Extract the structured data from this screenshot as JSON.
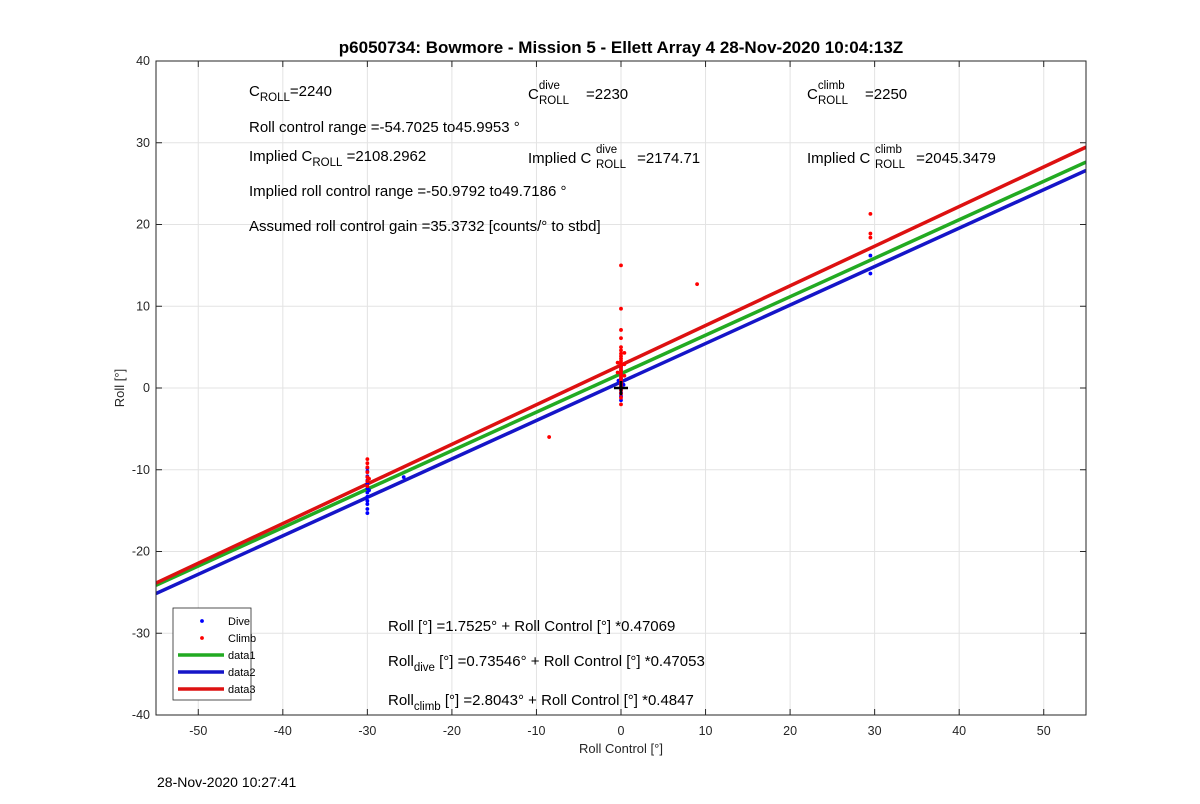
{
  "chart_data": {
    "type": "scatter",
    "title": "p6050734: Bowmore - Mission 5 - Ellett Array 4 28-Nov-2020 10:04:13Z",
    "xlabel": "Roll Control [°]",
    "ylabel": "Roll [°]",
    "xlim": [
      -55,
      55
    ],
    "ylim": [
      -40,
      40
    ],
    "xticks": [
      -50,
      -40,
      -30,
      -20,
      -10,
      0,
      10,
      20,
      30,
      40,
      50
    ],
    "yticks": [
      -40,
      -30,
      -20,
      -10,
      0,
      10,
      20,
      30,
      40
    ],
    "grid": true,
    "legend_position": "bottom-left",
    "legend": [
      "Dive",
      "Climb",
      "data1",
      "data2",
      "data3"
    ],
    "colors": {
      "dive": "#0000ff",
      "climb": "#ff0000",
      "data1": "#22aa22",
      "data2": "#1515c8",
      "data3": "#dd1111"
    },
    "series": [
      {
        "name": "Dive",
        "kind": "points",
        "color": "#0000ff",
        "points": [
          [
            -30,
            -15.3
          ],
          [
            -30,
            -14.8
          ],
          [
            -30,
            -14.2
          ],
          [
            -30,
            -13.8
          ],
          [
            -30,
            -13.3
          ],
          [
            -30,
            -12.8
          ],
          [
            -30,
            -12.3
          ],
          [
            -30,
            -11.7
          ],
          [
            -30,
            -11.3
          ],
          [
            -30,
            -10.8
          ],
          [
            -30,
            -10.2
          ],
          [
            -30,
            -9.8
          ],
          [
            -29.8,
            -12.5
          ],
          [
            -25.7,
            -10.9
          ],
          [
            0,
            -1.5
          ],
          [
            0,
            -1.0
          ],
          [
            0,
            -0.6
          ],
          [
            0,
            -0.2
          ],
          [
            0,
            0.2
          ],
          [
            0,
            0.5
          ],
          [
            0,
            0.8
          ],
          [
            0,
            1.2
          ],
          [
            0,
            1.5
          ],
          [
            0,
            1.8
          ],
          [
            0,
            2.2
          ],
          [
            0,
            2.6
          ],
          [
            0.3,
            0.4
          ],
          [
            -0.3,
            0.9
          ],
          [
            29.5,
            14.0
          ],
          [
            29.5,
            16.2
          ]
        ]
      },
      {
        "name": "Climb",
        "kind": "points",
        "color": "#ff0000",
        "points": [
          [
            -30,
            -8.7
          ],
          [
            -30,
            -9.2
          ],
          [
            -30,
            -9.7
          ],
          [
            -30,
            -10.3
          ],
          [
            -30,
            -10.9
          ],
          [
            -30,
            -11.4
          ],
          [
            -30,
            -12.0
          ],
          [
            -29.8,
            -11.1
          ],
          [
            0,
            15.0
          ],
          [
            0,
            9.7
          ],
          [
            0,
            7.1
          ],
          [
            0,
            6.1
          ],
          [
            0,
            5.0
          ],
          [
            0,
            4.6
          ],
          [
            0,
            4.2
          ],
          [
            0,
            3.9
          ],
          [
            0,
            3.6
          ],
          [
            0,
            3.3
          ],
          [
            0,
            3.0
          ],
          [
            0,
            2.7
          ],
          [
            0,
            2.4
          ],
          [
            0,
            2.1
          ],
          [
            0,
            1.8
          ],
          [
            0,
            1.5
          ],
          [
            0,
            1.2
          ],
          [
            0,
            0.9
          ],
          [
            0,
            0.6
          ],
          [
            0,
            0.3
          ],
          [
            0,
            0.0
          ],
          [
            0,
            -0.3
          ],
          [
            0,
            -0.7
          ],
          [
            0,
            -1.2
          ],
          [
            0,
            -2.0
          ],
          [
            0.4,
            4.3
          ],
          [
            0.4,
            2.9
          ],
          [
            0.4,
            1.5
          ],
          [
            -0.4,
            3.1
          ],
          [
            -0.4,
            1.9
          ],
          [
            -8.5,
            -6.0
          ],
          [
            9.0,
            12.7
          ],
          [
            29.5,
            21.3
          ],
          [
            29.5,
            18.9
          ],
          [
            29.5,
            18.4
          ]
        ]
      },
      {
        "name": "data1",
        "kind": "line",
        "color": "#22aa22",
        "intercept": 1.7525,
        "slope": 0.47069
      },
      {
        "name": "data2",
        "kind": "line",
        "color": "#1515c8",
        "intercept": 0.73546,
        "slope": 0.47053
      },
      {
        "name": "data3",
        "kind": "line",
        "color": "#dd1111",
        "intercept": 2.8043,
        "slope": 0.4847
      }
    ],
    "marker": {
      "x": 0,
      "y": 0,
      "symbol": "+"
    }
  },
  "annotations": {
    "c_roll": {
      "base": "C",
      "sub": "ROLL",
      "value": "=2240"
    },
    "c_roll_dive": {
      "base": "C",
      "sup": "dive",
      "sub": "ROLL",
      "value": "=2230"
    },
    "c_roll_climb": {
      "base": "C",
      "sup": "climb",
      "sub": "ROLL",
      "value": "=2250"
    },
    "roll_range": "Roll control range =-54.7025 to45.9953 °",
    "implied_c_roll": {
      "prefix": "Implied C",
      "sub": "ROLL",
      "value": " =2108.2962"
    },
    "implied_c_roll_dive": {
      "prefix": "Implied C",
      "sup": "dive",
      "sub": "ROLL",
      "value": " =2174.71"
    },
    "implied_c_roll_climb": {
      "prefix": "Implied C",
      "sup": "climb",
      "sub": "ROLL",
      "value": " =2045.3479"
    },
    "implied_range": "Implied roll control range =-50.9792 to49.7186 °",
    "gain": "Assumed roll control gain =35.3732 [counts/° to stbd]",
    "fit_all": "Roll [°] =1.7525° + Roll Control [°] *0.47069",
    "fit_dive": {
      "base": "Roll",
      "sub": "dive",
      "rest": " [°] =0.73546° + Roll Control [°] *0.47053"
    },
    "fit_climb": {
      "base": "Roll",
      "sub": "climb",
      "rest": " [°] =2.8043° + Roll Control [°] *0.4847"
    }
  },
  "footer": {
    "timestamp": "28-Nov-2020 10:27:41"
  }
}
